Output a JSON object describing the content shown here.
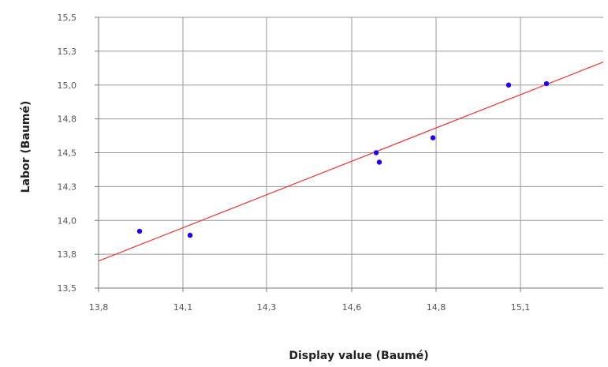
{
  "chart_data": {
    "type": "scatter",
    "xlabel": "Display value (Baumé)",
    "ylabel": "Labor (Baumé)",
    "xlim": [
      13.8,
      15.4
    ],
    "ylim": [
      13.5,
      15.5
    ],
    "x_ticks": [
      "13,8",
      "14,1",
      "14,3",
      "14,6",
      "14,8",
      "15,1"
    ],
    "y_ticks": [
      "15,5",
      "15,3",
      "15,0",
      "14,8",
      "14,5",
      "14,3",
      "14,0",
      "13,8",
      "13,5"
    ],
    "grid": true,
    "series": [
      {
        "points": [
          {
            "x": 13.93,
            "y": 13.92
          },
          {
            "x": 14.09,
            "y": 13.89
          },
          {
            "x": 14.68,
            "y": 14.5
          },
          {
            "x": 14.69,
            "y": 14.43
          },
          {
            "x": 14.86,
            "y": 14.61
          },
          {
            "x": 15.1,
            "y": 15.0
          },
          {
            "x": 15.22,
            "y": 15.01
          }
        ],
        "color": "#2200ee"
      }
    ],
    "trendline": {
      "x": [
        13.8,
        15.4
      ],
      "y": [
        13.7,
        15.17
      ],
      "color": "#ee3333"
    }
  }
}
